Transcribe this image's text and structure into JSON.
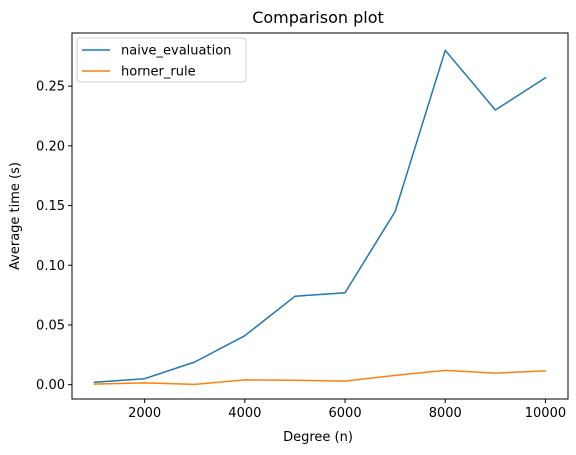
{
  "chart_data": {
    "type": "line",
    "title": "Comparison plot",
    "xlabel": "Degree (n)",
    "ylabel": "Average time (s)",
    "xlim": [
      550,
      10450
    ],
    "ylim": [
      -0.012,
      0.2945
    ],
    "x_ticks": [
      2000,
      4000,
      6000,
      8000,
      10000
    ],
    "x_tick_labels": [
      "2000",
      "4000",
      "6000",
      "8000",
      "10000"
    ],
    "y_ticks": [
      0.0,
      0.05,
      0.1,
      0.15,
      0.2,
      0.25
    ],
    "y_tick_labels": [
      "0.00",
      "0.05",
      "0.10",
      "0.15",
      "0.20",
      "0.25"
    ],
    "grid": false,
    "legend_position": "upper-left",
    "x": [
      1000,
      2000,
      3000,
      4000,
      5000,
      6000,
      7000,
      8000,
      9000,
      10000
    ],
    "series": [
      {
        "name": "naive_evaluation",
        "color": "#1f77b4",
        "values": [
          0.002,
          0.005,
          0.019,
          0.041,
          0.074,
          0.077,
          0.145,
          0.28,
          0.23,
          0.257
        ]
      },
      {
        "name": "horner_rule",
        "color": "#ff7f0e",
        "values": [
          0.0005,
          0.0015,
          0.0002,
          0.004,
          0.0037,
          0.003,
          0.0078,
          0.012,
          0.0097,
          0.0115
        ]
      }
    ]
  }
}
